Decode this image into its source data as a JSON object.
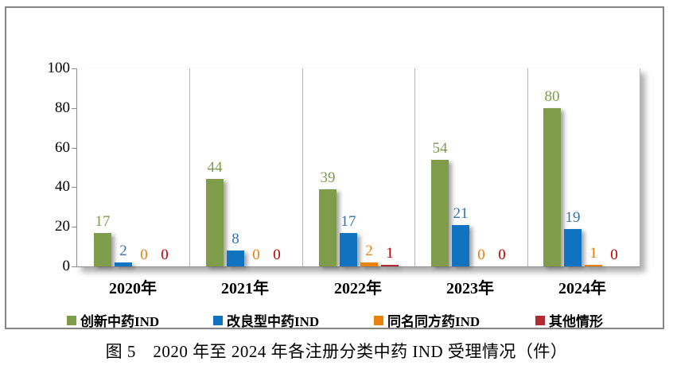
{
  "caption": "图 5　2020 年至 2024 年各注册分类中药 IND 受理情况（件）",
  "chart_data": {
    "type": "bar",
    "title": "图 5　2020 年至 2024 年各注册分类中药 IND 受理情况（件）",
    "categories": [
      "2020年",
      "2021年",
      "2022年",
      "2023年",
      "2024年"
    ],
    "series": [
      {
        "name": "创新中药IND",
        "color": "#7E9C49",
        "label_color": "#7E9C49",
        "values": [
          17,
          44,
          39,
          54,
          80
        ]
      },
      {
        "name": "改良型中药IND",
        "color": "#0F73C2",
        "label_color": "#2D74B5",
        "values": [
          2,
          8,
          17,
          21,
          19
        ]
      },
      {
        "name": "同名同方药IND",
        "color": "#E8820D",
        "label_color": "#E8820D",
        "values": [
          0,
          0,
          2,
          0,
          1
        ]
      },
      {
        "name": "其他情形",
        "color": "#B02B33",
        "label_color": "#C00000",
        "values": [
          0,
          0,
          1,
          0,
          0
        ]
      }
    ],
    "xlabel": "",
    "ylabel": "",
    "ylim": [
      0,
      100
    ],
    "yticks": [
      0,
      20,
      40,
      60,
      80,
      100
    ],
    "legend_position": "bottom",
    "value_labels": true,
    "grid": "category-separators"
  }
}
